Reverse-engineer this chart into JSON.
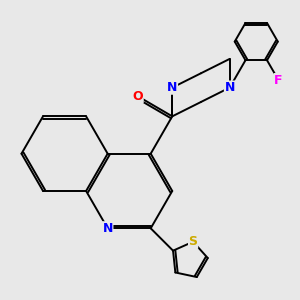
{
  "background_color": "#e8e8e8",
  "bond_color": "#000000",
  "atom_colors": {
    "N": "#0000ff",
    "O": "#ff0000",
    "S": "#ccaa00",
    "F": "#ff00ff"
  },
  "figsize": [
    3.0,
    3.0
  ],
  "dpi": 100
}
